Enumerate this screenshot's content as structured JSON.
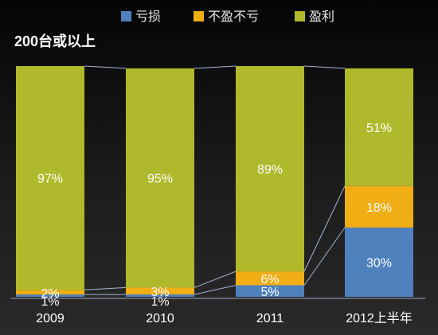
{
  "chart_data": {
    "type": "bar",
    "stacked": true,
    "normalized": true,
    "title": "200台或以上",
    "categories": [
      "2009",
      "2010",
      "2011",
      "2012上半年"
    ],
    "series": [
      {
        "name": "亏损",
        "values": [
          1,
          1,
          5,
          30
        ],
        "color": "#4f81bd"
      },
      {
        "name": "不盈不亏",
        "values": [
          2,
          3,
          6,
          18
        ],
        "color": "#f0ad14"
      },
      {
        "name": "盈利",
        "values": [
          97,
          95,
          89,
          51
        ],
        "color": "#b0b82c"
      }
    ],
    "ylim": [
      0,
      100
    ],
    "unit": "%",
    "legend_position": "top-right",
    "grid": false,
    "connector_lines": true
  }
}
